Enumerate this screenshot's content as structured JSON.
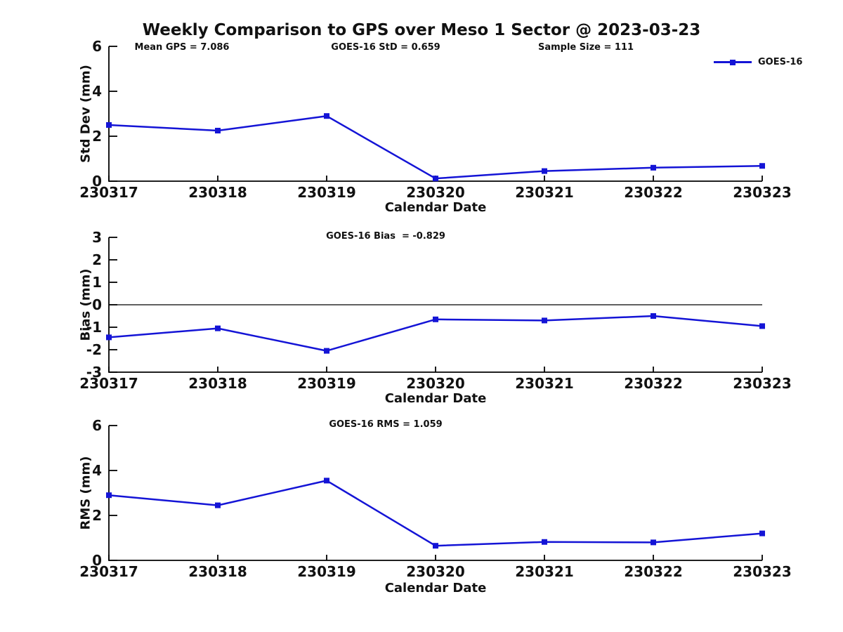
{
  "title": "Weekly Comparison to GPS over Meso 1 Sector @ 2023-03-23",
  "colors": {
    "line": "#1414d6",
    "axis": "#000000",
    "text": "#111111"
  },
  "chart_data": [
    {
      "type": "line",
      "categories": [
        "230317",
        "230318",
        "230319",
        "230320",
        "230321",
        "230322",
        "230323"
      ],
      "series": [
        {
          "name": "GOES-16",
          "values": [
            2.5,
            2.25,
            2.9,
            0.12,
            0.45,
            0.6,
            0.68
          ]
        }
      ],
      "legend": "GOES-16",
      "legend_position": "top-right",
      "annotations": [
        "Mean GPS = 7.086",
        "GOES-16 StD = 0.659",
        "Sample Size = 111"
      ],
      "xlabel": "Calendar Date",
      "ylabel": "Std Dev (mm)",
      "ylim": [
        0,
        6
      ],
      "yticks": [
        0,
        2,
        4,
        6
      ],
      "grid": "off",
      "zero_line": false
    },
    {
      "type": "line",
      "categories": [
        "230317",
        "230318",
        "230319",
        "230320",
        "230321",
        "230322",
        "230323"
      ],
      "series": [
        {
          "name": "GOES-16",
          "values": [
            -1.45,
            -1.05,
            -2.05,
            -0.65,
            -0.7,
            -0.5,
            -0.95
          ]
        }
      ],
      "annotation": "GOES-16 Bias  = -0.829",
      "xlabel": "Calendar Date",
      "ylabel": "Bias (mm)",
      "ylim": [
        -3,
        3
      ],
      "yticks": [
        3,
        2,
        1,
        0,
        -1,
        -2,
        -3
      ],
      "grid": "off",
      "zero_line": true
    },
    {
      "type": "line",
      "categories": [
        "230317",
        "230318",
        "230319",
        "230320",
        "230321",
        "230322",
        "230323"
      ],
      "series": [
        {
          "name": "GOES-16",
          "values": [
            2.9,
            2.45,
            3.55,
            0.65,
            0.82,
            0.8,
            1.2
          ]
        }
      ],
      "annotation": "GOES-16 RMS = 1.059",
      "xlabel": "Calendar Date",
      "ylabel": "RMS (mm)",
      "ylim": [
        0,
        6
      ],
      "yticks": [
        0,
        2,
        4,
        6
      ],
      "grid": "off",
      "zero_line": false
    }
  ]
}
